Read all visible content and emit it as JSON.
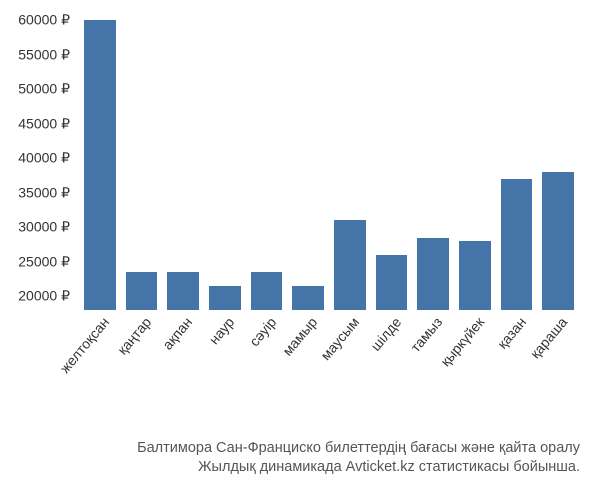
{
  "chart": {
    "type": "bar",
    "categories": [
      "желтоқсан",
      "қаңтар",
      "ақпан",
      "наур",
      "сәуір",
      "мамыр",
      "маусым",
      "шілде",
      "тамыз",
      "қыркүйек",
      "қазан",
      "қараша"
    ],
    "values": [
      60000,
      23500,
      23500,
      21500,
      23500,
      21500,
      31000,
      26000,
      28500,
      28000,
      37000,
      38000
    ],
    "bar_color": "#4574a8",
    "ylim": [
      18000,
      60000
    ],
    "yticks": [
      20000,
      25000,
      30000,
      35000,
      40000,
      45000,
      50000,
      55000,
      60000
    ],
    "ytick_labels": [
      "20000 ₽",
      "25000 ₽",
      "30000 ₽",
      "35000 ₽",
      "40000 ₽",
      "45000 ₽",
      "50000 ₽",
      "55000 ₽",
      "60000 ₽"
    ],
    "background_color": "#ffffff",
    "label_fontsize": 14,
    "label_color": "#333333",
    "x_label_rotation": -50
  },
  "caption": {
    "line1": "Балтимора Сан-Франциско билеттердің бағасы және қайта оралу",
    "line2": "Жылдық динамикада Avticket.kz статистикасы бойынша."
  }
}
